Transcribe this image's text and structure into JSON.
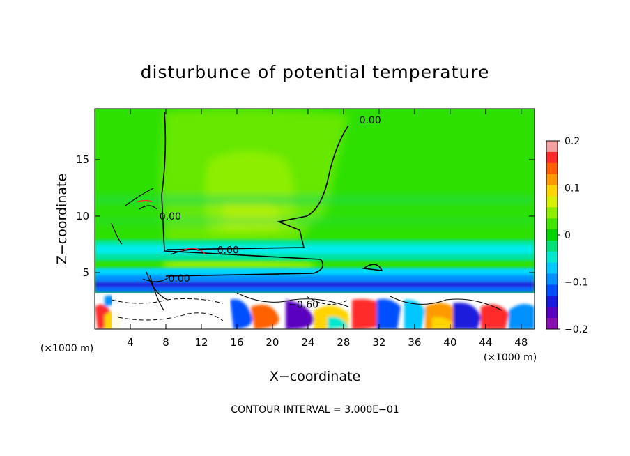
{
  "chart_data": {
    "type": "heatmap",
    "title": "disturbunce of potential temperature",
    "xlabel": "X−coordinate",
    "ylabel": "Z−coordinate",
    "x_unit_left": "(×1000 m)",
    "x_unit_right": "(×1000 m)",
    "xlim": [
      0,
      49.5
    ],
    "ylim": [
      0,
      19.5
    ],
    "x_ticks": [
      4,
      8,
      12,
      16,
      20,
      24,
      28,
      32,
      36,
      40,
      44,
      48
    ],
    "y_ticks": [
      5,
      10,
      15
    ],
    "colorbar": {
      "ticks": [
        0.2,
        0.1,
        0,
        -0.1,
        -0.2
      ],
      "tick_labels": [
        "0.2",
        "0.1",
        "0",
        "−0.1",
        "−0.2"
      ],
      "colors": [
        "#f6a2a2",
        "#ff2a2a",
        "#ff6000",
        "#ff9a00",
        "#ffd400",
        "#d8f000",
        "#8ef000",
        "#44e600",
        "#00d400",
        "#00e07a",
        "#00e8d0",
        "#00c8ff",
        "#0090ff",
        "#0050ff",
        "#1a1adc",
        "#5a00c0",
        "#8a10b0"
      ]
    },
    "contour_labels": [
      {
        "text": "0.00",
        "x": 31,
        "z": 18.5
      },
      {
        "text": "0.00",
        "x": 8.5,
        "z": 10
      },
      {
        "text": "0.00",
        "x": 15,
        "z": 7
      },
      {
        "text": "0.00",
        "x": 9.5,
        "z": 4.5
      },
      {
        "text": "−0.60",
        "x": 23.5,
        "z": 2.2
      }
    ],
    "footer": "CONTOUR INTERVAL = 3.000E−01"
  }
}
